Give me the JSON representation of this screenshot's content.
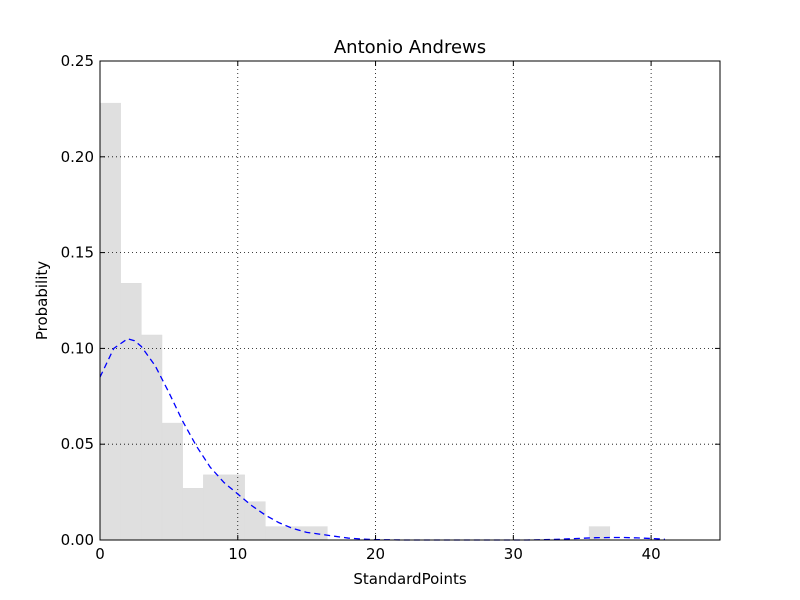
{
  "chart_data": {
    "type": "bar",
    "title": "Antonio Andrews",
    "xlabel": "StandardPoints",
    "ylabel": "Probability",
    "xlim": [
      0,
      45
    ],
    "ylim": [
      0,
      0.25
    ],
    "xticks": [
      0,
      10,
      20,
      30,
      40
    ],
    "yticks": [
      0.0,
      0.05,
      0.1,
      0.15,
      0.2,
      0.25
    ],
    "xtick_labels": [
      "0",
      "10",
      "20",
      "30",
      "40"
    ],
    "ytick_labels": [
      "0.00",
      "0.05",
      "0.10",
      "0.15",
      "0.20",
      "0.25"
    ],
    "grid": true,
    "bar_color": "#dfdfdf",
    "curve_color": "#0000ff",
    "histogram": {
      "bins": [
        {
          "x0": 0.0,
          "x1": 1.5,
          "height": 0.228
        },
        {
          "x0": 1.5,
          "x1": 3.0,
          "height": 0.134
        },
        {
          "x0": 3.0,
          "x1": 4.5,
          "height": 0.107
        },
        {
          "x0": 4.5,
          "x1": 6.0,
          "height": 0.061
        },
        {
          "x0": 6.0,
          "x1": 7.5,
          "height": 0.027
        },
        {
          "x0": 7.5,
          "x1": 10.5,
          "height": 0.034
        },
        {
          "x0": 10.5,
          "x1": 12.0,
          "height": 0.02
        },
        {
          "x0": 12.0,
          "x1": 16.5,
          "height": 0.007
        },
        {
          "x0": 35.5,
          "x1": 37.0,
          "height": 0.007
        }
      ]
    },
    "density_curve": {
      "style": "dashed",
      "x": [
        0,
        1,
        2,
        2.5,
        3,
        4,
        5,
        6,
        7,
        8,
        9,
        10,
        11,
        12,
        13,
        14,
        15,
        16,
        17,
        18,
        19,
        20,
        22,
        25,
        28,
        31,
        33,
        35,
        36,
        37,
        38,
        39,
        40,
        41
      ],
      "y": [
        0.085,
        0.1,
        0.105,
        0.104,
        0.101,
        0.091,
        0.077,
        0.062,
        0.049,
        0.038,
        0.03,
        0.024,
        0.018,
        0.013,
        0.009,
        0.006,
        0.004,
        0.003,
        0.002,
        0.001,
        0.0005,
        0.0002,
        0.0,
        0.0,
        0.0,
        0.0,
        0.0003,
        0.0009,
        0.0012,
        0.0013,
        0.0013,
        0.0011,
        0.0008,
        0.0004
      ]
    }
  }
}
